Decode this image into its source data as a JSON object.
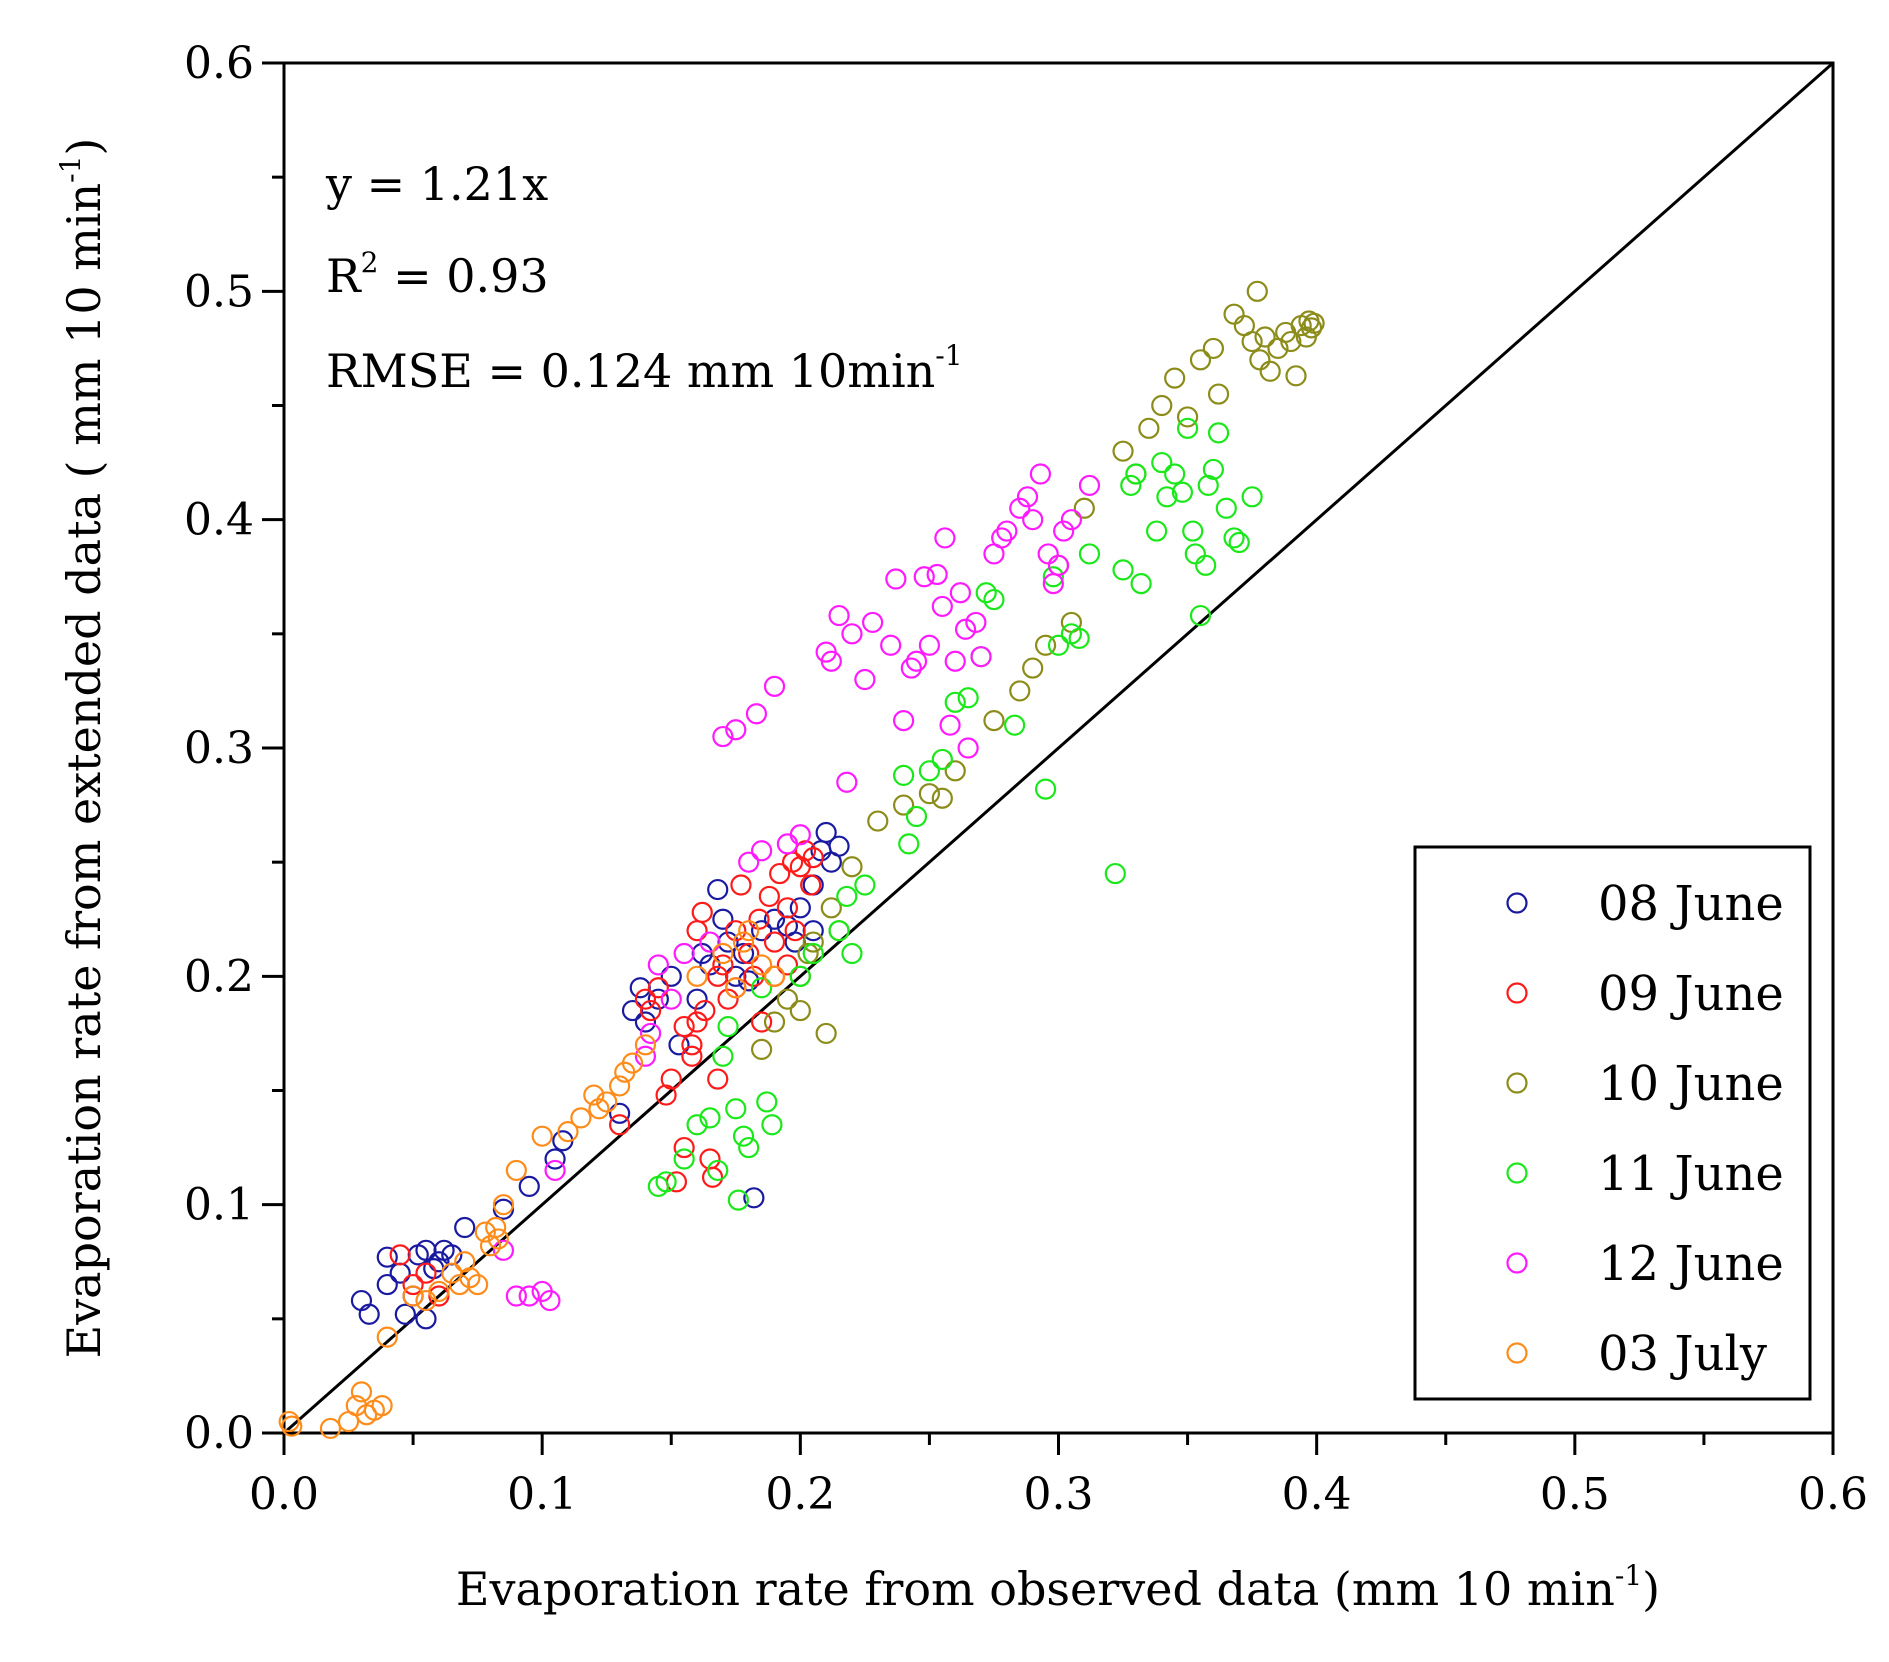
{
  "chart_data": {
    "type": "scatter",
    "title": "",
    "xlabel": "Evaporation rate from observed data (mm 10 min",
    "xlabel_sup": "-1",
    "xlabel_end": ")",
    "ylabel": "Evaporation rate from extended data ( mm 10 min",
    "ylabel_sup": "-1",
    "ylabel_end": ")",
    "xlim": [
      0,
      0.6
    ],
    "ylim": [
      0,
      0.6
    ],
    "x_ticks": [
      "0.0",
      "0.1",
      "0.2",
      "0.3",
      "0.4",
      "0.5",
      "0.6"
    ],
    "y_ticks": [
      "0.0",
      "0.1",
      "0.2",
      "0.3",
      "0.4",
      "0.5",
      "0.6"
    ],
    "reference_line": {
      "type": "1:1",
      "from": [
        0,
        0
      ],
      "to": [
        0.6,
        0.6
      ],
      "color": "#000000"
    },
    "annotations": {
      "equation": "y = 1.21x",
      "r2_prefix": "R",
      "r2_sup": "2",
      "r2_value": " = 0.93",
      "rmse": "RMSE = 0.124 mm 10min",
      "rmse_sup": "-1"
    },
    "legend_position": "bottom-right",
    "series": [
      {
        "name": "08 June",
        "color": "#1a1aa0",
        "points": [
          [
            0.03,
            0.058
          ],
          [
            0.033,
            0.052
          ],
          [
            0.04,
            0.077
          ],
          [
            0.04,
            0.065
          ],
          [
            0.045,
            0.07
          ],
          [
            0.047,
            0.052
          ],
          [
            0.05,
            0.06
          ],
          [
            0.052,
            0.078
          ],
          [
            0.055,
            0.08
          ],
          [
            0.055,
            0.05
          ],
          [
            0.058,
            0.072
          ],
          [
            0.06,
            0.075
          ],
          [
            0.062,
            0.08
          ],
          [
            0.065,
            0.078
          ],
          [
            0.07,
            0.09
          ],
          [
            0.085,
            0.098
          ],
          [
            0.095,
            0.108
          ],
          [
            0.105,
            0.12
          ],
          [
            0.108,
            0.128
          ],
          [
            0.13,
            0.14
          ],
          [
            0.135,
            0.185
          ],
          [
            0.138,
            0.195
          ],
          [
            0.14,
            0.18
          ],
          [
            0.145,
            0.19
          ],
          [
            0.15,
            0.2
          ],
          [
            0.153,
            0.17
          ],
          [
            0.16,
            0.19
          ],
          [
            0.162,
            0.21
          ],
          [
            0.165,
            0.205
          ],
          [
            0.168,
            0.238
          ],
          [
            0.17,
            0.225
          ],
          [
            0.172,
            0.215
          ],
          [
            0.175,
            0.2
          ],
          [
            0.178,
            0.21
          ],
          [
            0.18,
            0.198
          ],
          [
            0.182,
            0.103
          ],
          [
            0.185,
            0.22
          ],
          [
            0.19,
            0.225
          ],
          [
            0.195,
            0.222
          ],
          [
            0.2,
            0.23
          ],
          [
            0.205,
            0.22
          ],
          [
            0.208,
            0.255
          ],
          [
            0.21,
            0.263
          ],
          [
            0.212,
            0.25
          ],
          [
            0.215,
            0.257
          ],
          [
            0.205,
            0.24
          ],
          [
            0.198,
            0.215
          ]
        ]
      },
      {
        "name": "09 June",
        "color": "#ff1a1a",
        "points": [
          [
            0.045,
            0.078
          ],
          [
            0.05,
            0.065
          ],
          [
            0.055,
            0.07
          ],
          [
            0.06,
            0.06
          ],
          [
            0.13,
            0.135
          ],
          [
            0.14,
            0.19
          ],
          [
            0.142,
            0.185
          ],
          [
            0.145,
            0.195
          ],
          [
            0.148,
            0.148
          ],
          [
            0.15,
            0.155
          ],
          [
            0.152,
            0.11
          ],
          [
            0.155,
            0.125
          ],
          [
            0.155,
            0.178
          ],
          [
            0.158,
            0.165
          ],
          [
            0.16,
            0.22
          ],
          [
            0.162,
            0.228
          ],
          [
            0.163,
            0.185
          ],
          [
            0.165,
            0.12
          ],
          [
            0.166,
            0.112
          ],
          [
            0.168,
            0.155
          ],
          [
            0.17,
            0.205
          ],
          [
            0.172,
            0.19
          ],
          [
            0.175,
            0.22
          ],
          [
            0.177,
            0.24
          ],
          [
            0.18,
            0.21
          ],
          [
            0.182,
            0.2
          ],
          [
            0.184,
            0.225
          ],
          [
            0.185,
            0.18
          ],
          [
            0.188,
            0.235
          ],
          [
            0.19,
            0.215
          ],
          [
            0.192,
            0.245
          ],
          [
            0.195,
            0.23
          ],
          [
            0.197,
            0.25
          ],
          [
            0.198,
            0.22
          ],
          [
            0.2,
            0.248
          ],
          [
            0.202,
            0.255
          ],
          [
            0.204,
            0.24
          ],
          [
            0.205,
            0.252
          ],
          [
            0.195,
            0.205
          ],
          [
            0.19,
            0.2
          ],
          [
            0.175,
            0.195
          ],
          [
            0.168,
            0.2
          ],
          [
            0.16,
            0.18
          ],
          [
            0.158,
            0.17
          ]
        ]
      },
      {
        "name": "10 June",
        "color": "#8c8c1a",
        "points": [
          [
            0.185,
            0.168
          ],
          [
            0.19,
            0.18
          ],
          [
            0.195,
            0.19
          ],
          [
            0.2,
            0.185
          ],
          [
            0.2,
            0.2
          ],
          [
            0.203,
            0.21
          ],
          [
            0.205,
            0.215
          ],
          [
            0.21,
            0.175
          ],
          [
            0.212,
            0.23
          ],
          [
            0.215,
            0.22
          ],
          [
            0.22,
            0.248
          ],
          [
            0.23,
            0.268
          ],
          [
            0.24,
            0.275
          ],
          [
            0.25,
            0.28
          ],
          [
            0.255,
            0.278
          ],
          [
            0.26,
            0.29
          ],
          [
            0.275,
            0.312
          ],
          [
            0.285,
            0.325
          ],
          [
            0.29,
            0.335
          ],
          [
            0.295,
            0.345
          ],
          [
            0.3,
            0.38
          ],
          [
            0.305,
            0.355
          ],
          [
            0.31,
            0.405
          ],
          [
            0.325,
            0.43
          ],
          [
            0.33,
            0.42
          ],
          [
            0.335,
            0.44
          ],
          [
            0.34,
            0.45
          ],
          [
            0.345,
            0.462
          ],
          [
            0.35,
            0.445
          ],
          [
            0.355,
            0.47
          ],
          [
            0.36,
            0.475
          ],
          [
            0.362,
            0.455
          ],
          [
            0.368,
            0.49
          ],
          [
            0.372,
            0.485
          ],
          [
            0.375,
            0.478
          ],
          [
            0.377,
            0.5
          ],
          [
            0.378,
            0.47
          ],
          [
            0.38,
            0.48
          ],
          [
            0.382,
            0.465
          ],
          [
            0.385,
            0.475
          ],
          [
            0.388,
            0.482
          ],
          [
            0.39,
            0.478
          ],
          [
            0.392,
            0.463
          ],
          [
            0.394,
            0.485
          ],
          [
            0.396,
            0.48
          ],
          [
            0.397,
            0.487
          ],
          [
            0.398,
            0.484
          ],
          [
            0.399,
            0.486
          ]
        ]
      },
      {
        "name": "11 June",
        "color": "#1ae81a",
        "points": [
          [
            0.145,
            0.108
          ],
          [
            0.148,
            0.11
          ],
          [
            0.155,
            0.12
          ],
          [
            0.16,
            0.135
          ],
          [
            0.165,
            0.138
          ],
          [
            0.168,
            0.115
          ],
          [
            0.17,
            0.165
          ],
          [
            0.172,
            0.178
          ],
          [
            0.175,
            0.142
          ],
          [
            0.176,
            0.102
          ],
          [
            0.178,
            0.13
          ],
          [
            0.18,
            0.125
          ],
          [
            0.185,
            0.195
          ],
          [
            0.187,
            0.145
          ],
          [
            0.189,
            0.135
          ],
          [
            0.2,
            0.2
          ],
          [
            0.205,
            0.21
          ],
          [
            0.215,
            0.22
          ],
          [
            0.218,
            0.235
          ],
          [
            0.22,
            0.21
          ],
          [
            0.225,
            0.24
          ],
          [
            0.24,
            0.288
          ],
          [
            0.242,
            0.258
          ],
          [
            0.245,
            0.27
          ],
          [
            0.25,
            0.29
          ],
          [
            0.255,
            0.295
          ],
          [
            0.26,
            0.32
          ],
          [
            0.265,
            0.322
          ],
          [
            0.27,
            0.34
          ],
          [
            0.272,
            0.368
          ],
          [
            0.275,
            0.365
          ],
          [
            0.283,
            0.31
          ],
          [
            0.295,
            0.282
          ],
          [
            0.298,
            0.375
          ],
          [
            0.3,
            0.345
          ],
          [
            0.305,
            0.35
          ],
          [
            0.308,
            0.348
          ],
          [
            0.312,
            0.385
          ],
          [
            0.322,
            0.245
          ],
          [
            0.325,
            0.378
          ],
          [
            0.328,
            0.415
          ],
          [
            0.33,
            0.42
          ],
          [
            0.332,
            0.372
          ],
          [
            0.338,
            0.395
          ],
          [
            0.34,
            0.425
          ],
          [
            0.342,
            0.41
          ],
          [
            0.345,
            0.42
          ],
          [
            0.348,
            0.412
          ],
          [
            0.35,
            0.44
          ],
          [
            0.352,
            0.395
          ],
          [
            0.353,
            0.385
          ],
          [
            0.355,
            0.358
          ],
          [
            0.357,
            0.38
          ],
          [
            0.358,
            0.415
          ],
          [
            0.36,
            0.422
          ],
          [
            0.362,
            0.438
          ],
          [
            0.365,
            0.405
          ],
          [
            0.368,
            0.392
          ],
          [
            0.37,
            0.39
          ],
          [
            0.375,
            0.41
          ]
        ]
      },
      {
        "name": "12 June",
        "color": "#ff1aff",
        "points": [
          [
            0.085,
            0.08
          ],
          [
            0.09,
            0.06
          ],
          [
            0.095,
            0.06
          ],
          [
            0.1,
            0.062
          ],
          [
            0.103,
            0.058
          ],
          [
            0.105,
            0.115
          ],
          [
            0.14,
            0.165
          ],
          [
            0.142,
            0.175
          ],
          [
            0.145,
            0.205
          ],
          [
            0.15,
            0.19
          ],
          [
            0.155,
            0.21
          ],
          [
            0.165,
            0.215
          ],
          [
            0.17,
            0.305
          ],
          [
            0.175,
            0.308
          ],
          [
            0.18,
            0.25
          ],
          [
            0.183,
            0.315
          ],
          [
            0.185,
            0.255
          ],
          [
            0.19,
            0.327
          ],
          [
            0.195,
            0.258
          ],
          [
            0.2,
            0.262
          ],
          [
            0.21,
            0.342
          ],
          [
            0.212,
            0.338
          ],
          [
            0.215,
            0.358
          ],
          [
            0.218,
            0.285
          ],
          [
            0.22,
            0.35
          ],
          [
            0.225,
            0.33
          ],
          [
            0.228,
            0.355
          ],
          [
            0.235,
            0.345
          ],
          [
            0.237,
            0.374
          ],
          [
            0.24,
            0.312
          ],
          [
            0.243,
            0.335
          ],
          [
            0.245,
            0.338
          ],
          [
            0.248,
            0.375
          ],
          [
            0.25,
            0.345
          ],
          [
            0.253,
            0.376
          ],
          [
            0.255,
            0.362
          ],
          [
            0.256,
            0.392
          ],
          [
            0.258,
            0.31
          ],
          [
            0.26,
            0.338
          ],
          [
            0.262,
            0.368
          ],
          [
            0.264,
            0.352
          ],
          [
            0.265,
            0.3
          ],
          [
            0.268,
            0.355
          ],
          [
            0.27,
            0.34
          ],
          [
            0.275,
            0.385
          ],
          [
            0.278,
            0.392
          ],
          [
            0.28,
            0.395
          ],
          [
            0.285,
            0.405
          ],
          [
            0.288,
            0.41
          ],
          [
            0.29,
            0.4
          ],
          [
            0.293,
            0.42
          ],
          [
            0.296,
            0.385
          ],
          [
            0.298,
            0.372
          ],
          [
            0.3,
            0.38
          ],
          [
            0.302,
            0.395
          ],
          [
            0.305,
            0.4
          ],
          [
            0.312,
            0.415
          ]
        ]
      },
      {
        "name": "03 July",
        "color": "#ff8c1a",
        "points": [
          [
            0.002,
            0.005
          ],
          [
            0.003,
            0.003
          ],
          [
            0.018,
            0.002
          ],
          [
            0.025,
            0.005
          ],
          [
            0.028,
            0.012
          ],
          [
            0.03,
            0.018
          ],
          [
            0.032,
            0.008
          ],
          [
            0.035,
            0.01
          ],
          [
            0.038,
            0.012
          ],
          [
            0.04,
            0.042
          ],
          [
            0.05,
            0.06
          ],
          [
            0.055,
            0.058
          ],
          [
            0.06,
            0.062
          ],
          [
            0.065,
            0.07
          ],
          [
            0.068,
            0.065
          ],
          [
            0.07,
            0.075
          ],
          [
            0.072,
            0.068
          ],
          [
            0.075,
            0.065
          ],
          [
            0.078,
            0.088
          ],
          [
            0.08,
            0.082
          ],
          [
            0.082,
            0.09
          ],
          [
            0.083,
            0.085
          ],
          [
            0.085,
            0.1
          ],
          [
            0.09,
            0.115
          ],
          [
            0.1,
            0.13
          ],
          [
            0.11,
            0.132
          ],
          [
            0.115,
            0.138
          ],
          [
            0.12,
            0.148
          ],
          [
            0.122,
            0.142
          ],
          [
            0.125,
            0.145
          ],
          [
            0.13,
            0.152
          ],
          [
            0.132,
            0.158
          ],
          [
            0.135,
            0.162
          ],
          [
            0.14,
            0.17
          ],
          [
            0.16,
            0.2
          ],
          [
            0.17,
            0.21
          ],
          [
            0.175,
            0.195
          ],
          [
            0.178,
            0.215
          ],
          [
            0.18,
            0.22
          ],
          [
            0.185,
            0.205
          ],
          [
            0.19,
            0.2
          ]
        ]
      }
    ]
  }
}
